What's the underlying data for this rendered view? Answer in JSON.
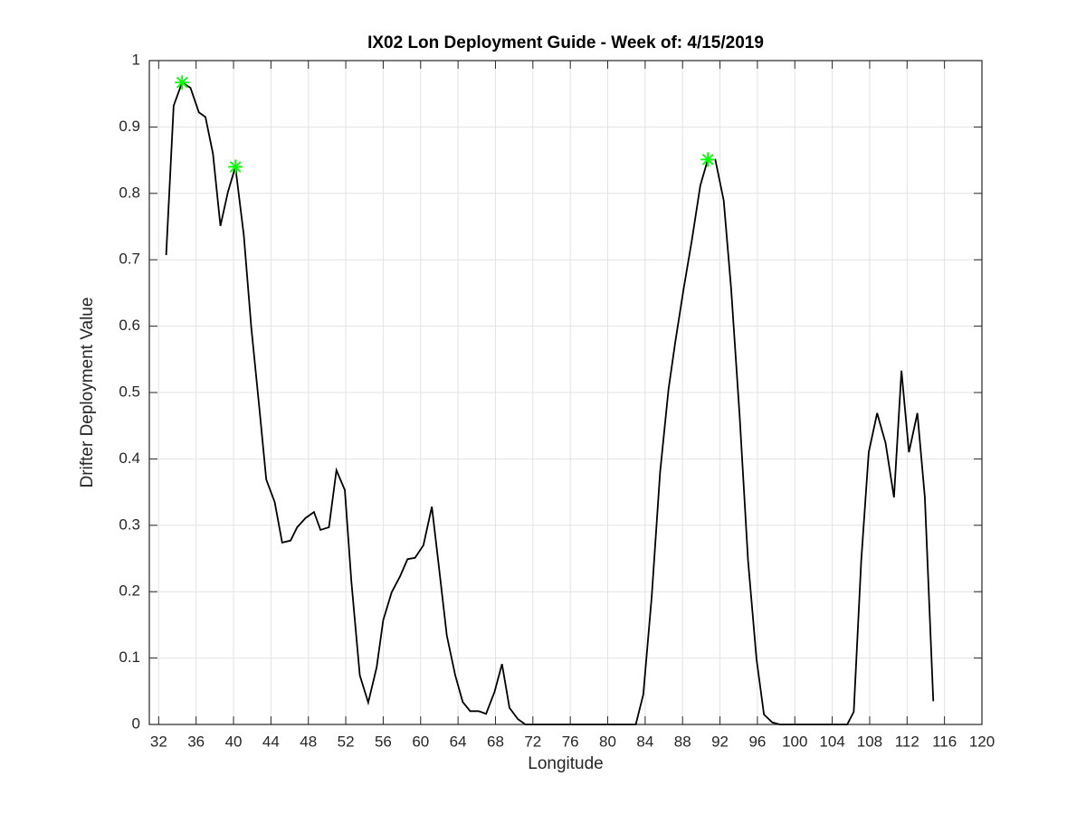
{
  "chart_data": {
    "type": "line",
    "title": "IX02 Lon Deployment Guide - Week of: 4/15/2019",
    "xlabel": "Longitude",
    "ylabel": "Drifter Deployment Value",
    "x": [
      32.8,
      33.6,
      34.5,
      35.4,
      36.3,
      37.0,
      37.8,
      38.6,
      39.4,
      40.2,
      41.1,
      41.9,
      42.8,
      43.5,
      44.4,
      45.2,
      46.1,
      46.8,
      47.7,
      48.6,
      49.3,
      50.2,
      51.0,
      51.9,
      52.6,
      53.5,
      54.4,
      55.3,
      56.0,
      56.9,
      57.8,
      58.6,
      59.4,
      60.3,
      61.2,
      61.9,
      62.8,
      63.7,
      64.5,
      65.3,
      66.2,
      67.0,
      67.9,
      68.7,
      69.5,
      70.4,
      71.2,
      72.1,
      72.9,
      73.8,
      74.6,
      75.5,
      76.4,
      77.2,
      78.1,
      78.9,
      79.8,
      80.6,
      81.5,
      82.3,
      83.0,
      83.8,
      84.7,
      85.6,
      86.5,
      87.2,
      88.1,
      89.0,
      89.9,
      90.7,
      91.5,
      92.4,
      93.2,
      94.1,
      95.0,
      95.9,
      96.7,
      97.6,
      98.4,
      99.3,
      100.1,
      101.0,
      101.8,
      102.7,
      103.5,
      104.4,
      105.6,
      106.3,
      107.1,
      107.9,
      108.8,
      109.7,
      110.6,
      111.4,
      112.2,
      113.1,
      113.9,
      114.8
    ],
    "values": [
      0.707,
      0.932,
      0.967,
      0.959,
      0.922,
      0.915,
      0.86,
      0.751,
      0.802,
      0.84,
      0.737,
      0.598,
      0.471,
      0.369,
      0.335,
      0.274,
      0.277,
      0.297,
      0.311,
      0.32,
      0.293,
      0.297,
      0.383,
      0.353,
      0.215,
      0.074,
      0.033,
      0.086,
      0.157,
      0.199,
      0.223,
      0.249,
      0.251,
      0.27,
      0.328,
      0.244,
      0.134,
      0.074,
      0.034,
      0.02,
      0.02,
      0.016,
      0.049,
      0.091,
      0.025,
      0.008,
      0,
      0,
      0,
      0,
      0,
      0,
      0,
      0,
      0,
      0,
      0,
      0,
      0,
      0,
      0,
      0.045,
      0.192,
      0.38,
      0.505,
      0.574,
      0.655,
      0.73,
      0.812,
      0.851,
      0.851,
      0.789,
      0.655,
      0.465,
      0.247,
      0.099,
      0.015,
      0.003,
      0,
      0,
      0,
      0,
      0,
      0,
      0,
      0,
      0,
      0.019,
      0.247,
      0.41,
      0.469,
      0.424,
      0.342,
      0.533,
      0.41,
      0.469,
      0.342,
      0.035
    ],
    "color": "#000000",
    "markers": {
      "x": [
        34.5,
        40.2,
        90.7
      ],
      "values": [
        0.967,
        0.84,
        0.851
      ],
      "color": "#00ff00"
    },
    "xlim": [
      31,
      120
    ],
    "ylim": [
      0,
      1
    ],
    "xticks": [
      32,
      36,
      40,
      44,
      48,
      52,
      56,
      60,
      64,
      68,
      72,
      76,
      80,
      84,
      88,
      92,
      96,
      100,
      104,
      108,
      112,
      116,
      120
    ],
    "yticks": [
      0,
      0.1,
      0.2,
      0.3,
      0.4,
      0.5,
      0.6,
      0.7,
      0.8,
      0.9,
      1
    ],
    "grid": true
  }
}
